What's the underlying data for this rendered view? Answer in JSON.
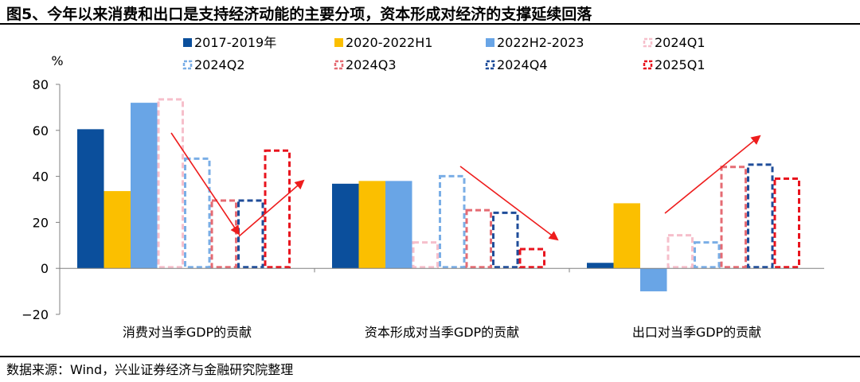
{
  "title": "图5、今年以来消费和出口是支持经济动能的主要分项，资本形成对经济的支撑延续回落",
  "source": "数据来源：Wind，兴业证券经济与金融研究院整理",
  "colors": {
    "s2017": "#0b4f9c",
    "s2020": "#fbbf00",
    "s2022": "#69a5e6",
    "s2024q1": "#f6bfcb",
    "s2024q2": "#7aaee6",
    "s2024q3": "#e56b73",
    "s2024q4": "#1f4d9a",
    "s2025q1": "#e8141e",
    "arrow": "#ee1c1c",
    "axis": "#808080"
  },
  "chart_data": {
    "type": "bar",
    "unit": "%",
    "categories": [
      "消费对当季GDP的贡献",
      "资本形成对当季GDP的贡献",
      "出口对当季GDP的贡献"
    ],
    "ylim": [
      -20,
      80
    ],
    "yticks": [
      -20,
      0,
      20,
      40,
      60,
      80
    ],
    "legend_position": "top",
    "series": [
      {
        "name": "2017-2019年",
        "style": "solid",
        "color": "#0b4f9c",
        "values": [
          60.5,
          36.8,
          2.4
        ]
      },
      {
        "name": "2020-2022H1",
        "style": "solid",
        "color": "#fbbf00",
        "values": [
          33.6,
          38.0,
          28.3
        ]
      },
      {
        "name": "2022H2-2023",
        "style": "solid",
        "color": "#69a5e6",
        "values": [
          72.0,
          38.0,
          -10.0
        ]
      },
      {
        "name": "2024Q1",
        "style": "dashed",
        "color": "#f6bfcb",
        "values": [
          74.0,
          11.8,
          14.9
        ]
      },
      {
        "name": "2024Q2",
        "style": "dashed",
        "color": "#7aaee6",
        "values": [
          48.2,
          40.6,
          11.8
        ]
      },
      {
        "name": "2024Q3",
        "style": "dashed",
        "color": "#e56b73",
        "values": [
          30.0,
          25.8,
          44.6
        ]
      },
      {
        "name": "2024Q4",
        "style": "dashed",
        "color": "#1f4d9a",
        "values": [
          30.0,
          24.7,
          45.6
        ]
      },
      {
        "name": "2025Q1",
        "style": "dashed",
        "color": "#e8141e",
        "values": [
          51.7,
          8.9,
          39.5
        ]
      }
    ]
  }
}
